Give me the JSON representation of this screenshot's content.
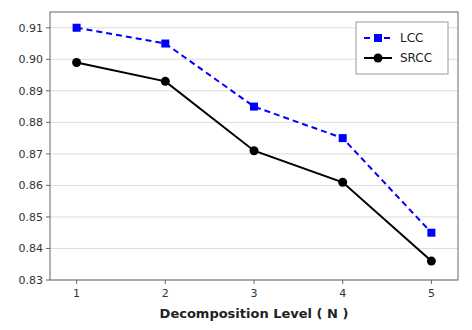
{
  "chart_data": {
    "type": "line",
    "xlabel": "Decomposition Level ( N )",
    "x": [
      1,
      2,
      3,
      4,
      5
    ],
    "series": [
      {
        "name": "LCC",
        "color": "#0000ff",
        "marker": "square",
        "line_style": "dashed",
        "values": [
          0.91,
          0.905,
          0.885,
          0.875,
          0.845
        ]
      },
      {
        "name": "SRCC",
        "color": "#000000",
        "marker": "circle",
        "line_style": "solid",
        "values": [
          0.899,
          0.893,
          0.871,
          0.861,
          0.836
        ]
      }
    ],
    "xlim": [
      0.7,
      5.3
    ],
    "xticks": [
      1,
      2,
      3,
      4,
      5
    ],
    "ylim": [
      0.83,
      0.915
    ],
    "yticks": [
      0.83,
      0.84,
      0.85,
      0.86,
      0.87,
      0.88,
      0.89,
      {
        "value": 0.9,
        "label": "0.90"
      },
      0.91
    ],
    "grid": true,
    "legend": "upper right"
  }
}
